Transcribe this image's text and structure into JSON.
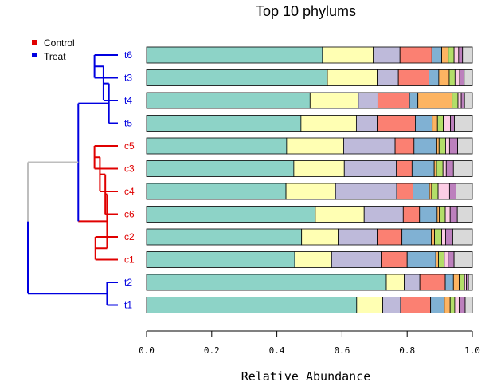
{
  "chart_data": {
    "type": "bar",
    "orientation": "horizontal",
    "stacked": true,
    "title": "Top 10 phylums",
    "xlabel": "Relative Abundance",
    "ylabel": "",
    "xlim": [
      0,
      1
    ],
    "x_ticks": [
      "0.0",
      "0.2",
      "0.4",
      "0.6",
      "0.8",
      "1.0"
    ],
    "x_tick_values": [
      0,
      0.2,
      0.4,
      0.6,
      0.8,
      1.0
    ],
    "grid": false,
    "legend_position": "top-left",
    "legend": [
      {
        "label": "Control",
        "color": "#e00000"
      },
      {
        "label": "Treat",
        "color": "#0000e0"
      }
    ],
    "segment_colors": [
      "#8dd3c7",
      "#ffffb3",
      "#bebada",
      "#fb8072",
      "#80b1d3",
      "#fdb462",
      "#b3de69",
      "#fccde5",
      "#bc80bd",
      "#d9d9d9"
    ],
    "categories": [
      "t6",
      "t3",
      "t4",
      "t5",
      "c5",
      "c3",
      "c4",
      "c6",
      "c2",
      "c1",
      "t2",
      "t1"
    ],
    "groups": [
      "Treat",
      "Treat",
      "Treat",
      "Treat",
      "Control",
      "Control",
      "Control",
      "Control",
      "Control",
      "Control",
      "Treat",
      "Treat"
    ],
    "values": [
      [
        0.54,
        0.156,
        0.082,
        0.098,
        0.03,
        0.02,
        0.018,
        0.014,
        0.012,
        0.03
      ],
      [
        0.555,
        0.153,
        0.065,
        0.094,
        0.03,
        0.032,
        0.018,
        0.014,
        0.014,
        0.025
      ],
      [
        0.502,
        0.148,
        0.06,
        0.097,
        0.026,
        0.105,
        0.018,
        0.01,
        0.01,
        0.024
      ],
      [
        0.474,
        0.17,
        0.064,
        0.117,
        0.052,
        0.016,
        0.018,
        0.022,
        0.012,
        0.055
      ],
      [
        0.43,
        0.175,
        0.158,
        0.058,
        0.07,
        0.007,
        0.02,
        0.012,
        0.025,
        0.045
      ],
      [
        0.452,
        0.155,
        0.16,
        0.048,
        0.068,
        0.007,
        0.02,
        0.01,
        0.022,
        0.058
      ],
      [
        0.428,
        0.152,
        0.188,
        0.05,
        0.05,
        0.007,
        0.02,
        0.035,
        0.02,
        0.05
      ],
      [
        0.518,
        0.15,
        0.12,
        0.05,
        0.054,
        0.007,
        0.018,
        0.015,
        0.022,
        0.046
      ],
      [
        0.476,
        0.112,
        0.12,
        0.076,
        0.09,
        0.01,
        0.022,
        0.012,
        0.022,
        0.06
      ],
      [
        0.455,
        0.113,
        0.152,
        0.08,
        0.088,
        0.008,
        0.018,
        0.012,
        0.018,
        0.056
      ],
      [
        0.736,
        0.055,
        0.048,
        0.078,
        0.025,
        0.018,
        0.016,
        0.006,
        0.006,
        0.012
      ],
      [
        0.645,
        0.08,
        0.055,
        0.092,
        0.042,
        0.018,
        0.014,
        0.014,
        0.018,
        0.022
      ]
    ],
    "dendrogram": {
      "leaves": [
        "t6",
        "t3",
        "t4",
        "t5",
        "c5",
        "c3",
        "c4",
        "c6",
        "c2",
        "c1",
        "t2",
        "t1"
      ],
      "merges": [
        {
          "left": "t6",
          "right": "t3",
          "height": 0.74,
          "group": "Treat"
        },
        {
          "left": "t6+t3",
          "right": "t4",
          "height": 0.84,
          "group": "Treat"
        },
        {
          "left": "t6+t3+t4",
          "right": "t5",
          "height": 0.9,
          "group": "Treat"
        },
        {
          "left": "c5",
          "right": "c3",
          "height": 0.74,
          "group": "Control"
        },
        {
          "left": "c5+c3",
          "right": "c4",
          "height": 0.8,
          "group": "Control"
        },
        {
          "left": "c5+c3+c4",
          "right": "c6",
          "height": 0.86,
          "group": "Control"
        },
        {
          "left": "c2",
          "right": "c1",
          "height": 0.75,
          "group": "Control"
        },
        {
          "left": "c5+c3+c4+c6",
          "right": "c2+c1",
          "height": 0.88,
          "group": "Control"
        },
        {
          "left": "t-cluster",
          "right": "c-cluster",
          "height": 0.56,
          "group": "Treat"
        },
        {
          "left": "t2",
          "right": "t1",
          "height": 0.88,
          "group": "Treat"
        },
        {
          "left": "top-cluster",
          "right": "t2+t1",
          "height": 0.2,
          "group": "Treat"
        }
      ]
    }
  }
}
